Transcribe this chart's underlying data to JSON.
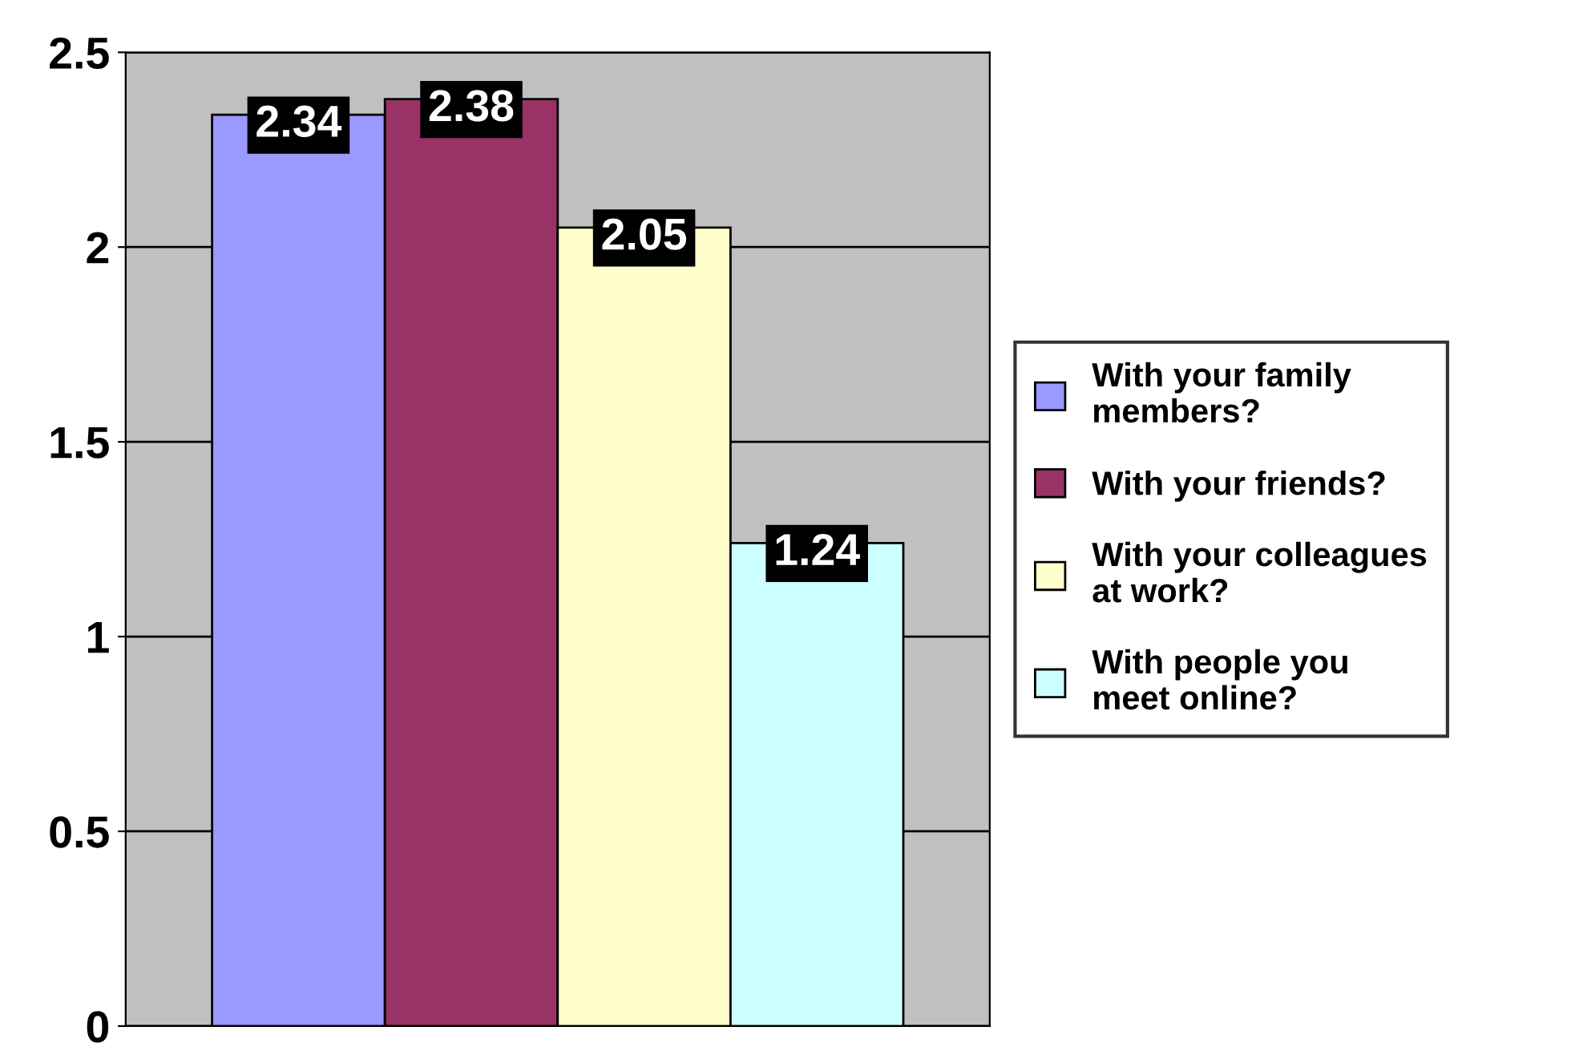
{
  "chart_data": {
    "type": "bar",
    "categories": [
      null
    ],
    "series": [
      {
        "name": "With your family\nmembers?",
        "color": "#9999ff",
        "values": [
          2.34
        ]
      },
      {
        "name": "With your friends?",
        "color": "#993366",
        "values": [
          2.38
        ]
      },
      {
        "name": "With your colleagues\nat work?",
        "color": "#ffffcc",
        "values": [
          2.05
        ]
      },
      {
        "name": "With people you\nmeet online?",
        "color": "#ccffff",
        "values": [
          1.24
        ]
      }
    ],
    "ylim": [
      0,
      2.5
    ],
    "yticks": [
      0,
      0.5,
      1,
      1.5,
      2,
      2.5
    ],
    "grid": "y",
    "legend": "right",
    "data_labels": true,
    "tick_labels": "y"
  }
}
